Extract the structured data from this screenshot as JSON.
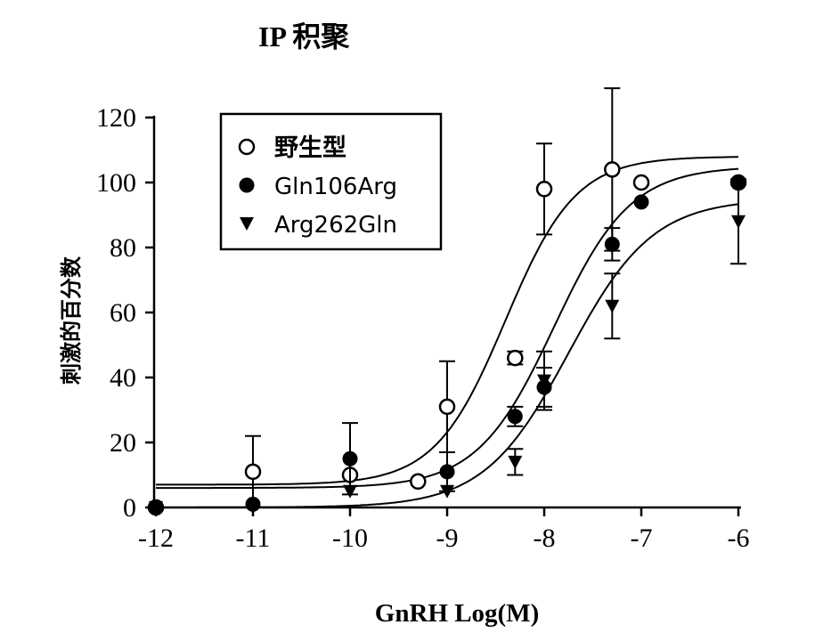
{
  "chart_data": {
    "type": "scatter",
    "title": "IP 积聚",
    "xlabel": "GnRH Log(M)",
    "ylabel": "刺激的百分数",
    "xlim": [
      -12,
      -6
    ],
    "ylim": [
      0,
      120
    ],
    "x_ticks": [
      "-12",
      "-11",
      "-10",
      "-9",
      "-8",
      "-7",
      "-6"
    ],
    "y_ticks": [
      "0",
      "20",
      "40",
      "60",
      "80",
      "100",
      "120"
    ],
    "grid": false,
    "legend_position": "top-left",
    "series": [
      {
        "name": "野生型",
        "marker": "open-circle",
        "color": "#000000",
        "points": [
          {
            "x": -12,
            "y": 0
          },
          {
            "x": -11,
            "y": 11,
            "err": 11
          },
          {
            "x": -10,
            "y": 10
          },
          {
            "x": -9.3,
            "y": 8
          },
          {
            "x": -9,
            "y": 31,
            "err": 14
          },
          {
            "x": -8.3,
            "y": 46,
            "err": 2
          },
          {
            "x": -8,
            "y": 98,
            "err": 14
          },
          {
            "x": -7.3,
            "y": 104,
            "err": 25
          },
          {
            "x": -7,
            "y": 100
          },
          {
            "x": -6,
            "y": 100
          }
        ],
        "fit": {
          "bottom": 7,
          "top": 108,
          "log_ec50": -8.4,
          "hill": 1.2
        }
      },
      {
        "name": "Gln106Arg",
        "marker": "filled-circle",
        "color": "#000000",
        "points": [
          {
            "x": -12,
            "y": 0
          },
          {
            "x": -11,
            "y": 1
          },
          {
            "x": -10,
            "y": 15,
            "err": 11
          },
          {
            "x": -9,
            "y": 11,
            "err": 6
          },
          {
            "x": -8.3,
            "y": 28,
            "err": 3
          },
          {
            "x": -8,
            "y": 37,
            "err": 6
          },
          {
            "x": -7.3,
            "y": 81,
            "err": 5
          },
          {
            "x": -7,
            "y": 94
          },
          {
            "x": -6,
            "y": 100
          }
        ],
        "fit": {
          "bottom": 6,
          "top": 105,
          "log_ec50": -7.9,
          "hill": 1.1
        }
      },
      {
        "name": "Arg262Gln",
        "marker": "filled-triangle-down",
        "color": "#000000",
        "points": [
          {
            "x": -12,
            "y": 0
          },
          {
            "x": -11,
            "y": 0
          },
          {
            "x": -10,
            "y": 5
          },
          {
            "x": -9,
            "y": 5
          },
          {
            "x": -8.3,
            "y": 14,
            "err": 4
          },
          {
            "x": -8,
            "y": 39,
            "err": 9
          },
          {
            "x": -7.3,
            "y": 62,
            "err": 10
          },
          {
            "x": -6,
            "y": 88,
            "err": 13
          }
        ],
        "fit": {
          "bottom": 0,
          "top": 95,
          "log_ec50": -7.75,
          "hill": 1.0
        }
      }
    ]
  }
}
